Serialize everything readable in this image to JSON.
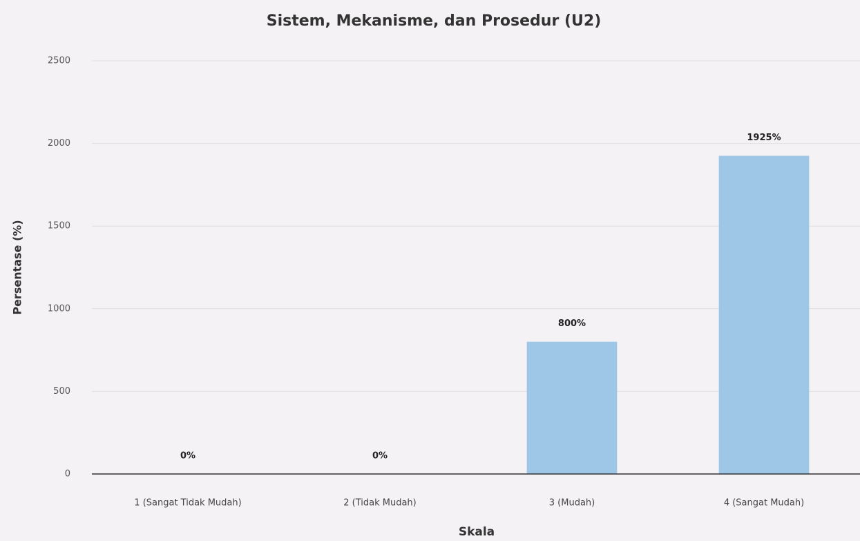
{
  "chart_data": {
    "type": "bar",
    "title": "Sistem, Mekanisme, dan Prosedur (U2)",
    "xlabel": "Skala",
    "ylabel": "Persentase (%)",
    "categories": [
      "1 (Sangat Tidak Mudah)",
      "2 (Tidak Mudah)",
      "3 (Mudah)",
      "4 (Sangat Mudah)"
    ],
    "values": [
      0,
      0,
      800,
      1925
    ],
    "value_labels": [
      "0%",
      "0%",
      "800%",
      "1925%"
    ],
    "color": "#9ec6e6",
    "ylim": [
      0,
      2500
    ],
    "yticks": [
      0,
      500,
      1000,
      1500,
      2000,
      2500
    ],
    "grid": true
  }
}
